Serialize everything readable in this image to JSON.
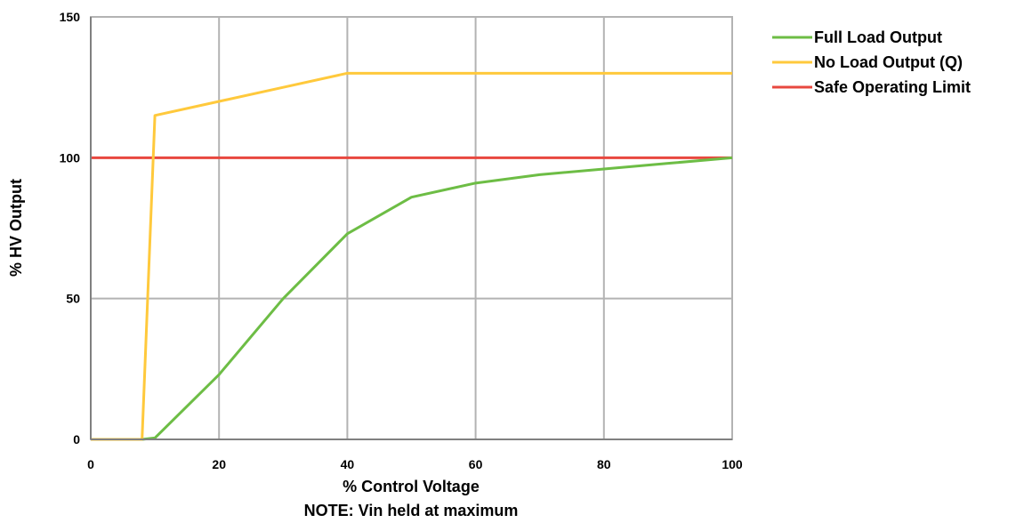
{
  "chart_data": {
    "type": "line",
    "xlabel": "% Control Voltage",
    "ylabel": "% HV Output",
    "note": "NOTE: Vin held at maximum",
    "xlim": [
      0,
      100
    ],
    "ylim": [
      0,
      150
    ],
    "xticks": [
      "0",
      "20",
      "40",
      "60",
      "80",
      "100"
    ],
    "yticks": [
      "0",
      "50",
      "100",
      "150"
    ],
    "grid": true,
    "legend_position": "top-right outside",
    "series": [
      {
        "name": "Full Load Output",
        "color": "#6dbd45",
        "x": [
          0,
          8,
          10,
          20,
          30,
          40,
          50,
          60,
          70,
          80,
          90,
          100
        ],
        "y": [
          0,
          0,
          0.5,
          23,
          50,
          73,
          86,
          91,
          94,
          96,
          98,
          100
        ]
      },
      {
        "name": "No Load Output (Q)",
        "color": "#ffc93c",
        "x": [
          0,
          8,
          10,
          20,
          30,
          40,
          50,
          60,
          70,
          80,
          90,
          100
        ],
        "y": [
          0,
          0,
          115,
          120,
          125,
          130,
          130,
          130,
          130,
          130,
          130,
          130
        ]
      },
      {
        "name": "Safe Operating Limit",
        "color": "#e8483f",
        "x": [
          0,
          100
        ],
        "y": [
          100,
          100
        ]
      }
    ]
  }
}
